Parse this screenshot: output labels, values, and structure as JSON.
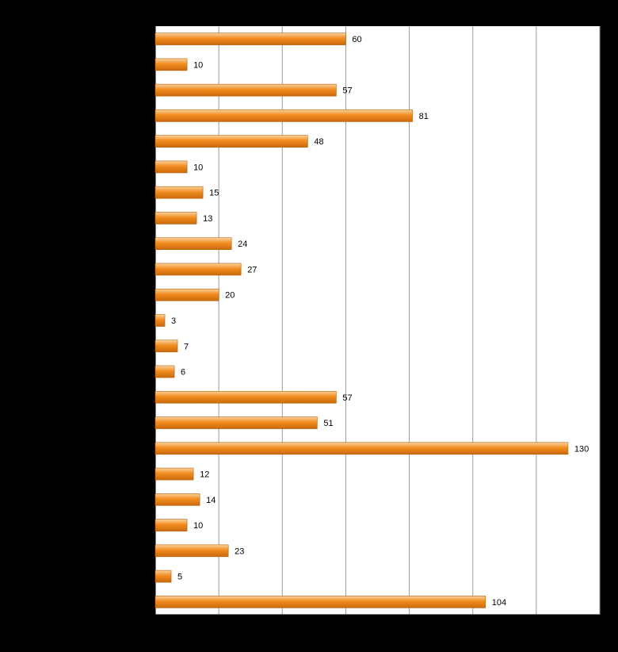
{
  "chart_data": {
    "type": "bar",
    "orientation": "horizontal",
    "values": [
      60,
      10,
      57,
      81,
      48,
      10,
      15,
      13,
      24,
      27,
      20,
      3,
      7,
      6,
      57,
      51,
      130,
      12,
      14,
      10,
      23,
      5,
      104
    ],
    "xlim": [
      0,
      140
    ],
    "grid": true,
    "bar_color": "#F28C1E",
    "bar_highlight": "#FBD3A0",
    "plot_background": "#FFFFFF",
    "page_background": "#000000"
  }
}
